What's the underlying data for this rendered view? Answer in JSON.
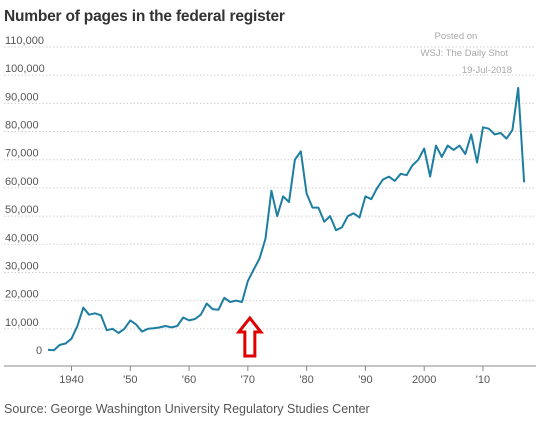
{
  "chart_data": {
    "type": "line",
    "title": "Number of pages in the federal register",
    "source": "Source: George Washington University Regulatory Studies Center",
    "posted": [
      "Posted on",
      "WSJ: The Daily Shot",
      "19-Jul-2018"
    ],
    "xlabel": "",
    "ylabel": "",
    "xlim": [
      1936,
      2018
    ],
    "ylim": [
      0,
      110000
    ],
    "grid": true,
    "y_ticks": [
      0,
      10000,
      20000,
      30000,
      40000,
      50000,
      60000,
      70000,
      80000,
      90000,
      100000,
      110000
    ],
    "y_tick_labels": [
      "0",
      "10,000",
      "20,000",
      "30,000",
      "40,000",
      "50,000",
      "60,000",
      "70,000",
      "80,000",
      "90,000",
      "100,000",
      "110,000"
    ],
    "x_ticks": [
      1940,
      1950,
      1960,
      1970,
      1980,
      1990,
      2000,
      2010
    ],
    "x_tick_labels": [
      "1940",
      "'50",
      "'60",
      "'70",
      "'80",
      "'90",
      "2000",
      "'10"
    ],
    "line_color": "#1e7ea1",
    "annotation": {
      "type": "arrow",
      "direction": "up",
      "x": 1970,
      "color": "#e00000"
    },
    "series": [
      {
        "name": "",
        "x": [
          1936,
          1937,
          1938,
          1939,
          1940,
          1941,
          1942,
          1943,
          1944,
          1945,
          1946,
          1947,
          1948,
          1949,
          1950,
          1951,
          1952,
          1953,
          1954,
          1955,
          1956,
          1957,
          1958,
          1959,
          1960,
          1961,
          1962,
          1963,
          1964,
          1965,
          1966,
          1967,
          1968,
          1969,
          1970,
          1971,
          1972,
          1973,
          1974,
          1975,
          1976,
          1977,
          1978,
          1979,
          1980,
          1981,
          1982,
          1983,
          1984,
          1985,
          1986,
          1987,
          1988,
          1989,
          1990,
          1991,
          1992,
          1993,
          1994,
          1995,
          1996,
          1997,
          1998,
          1999,
          2000,
          2001,
          2002,
          2003,
          2004,
          2005,
          2006,
          2007,
          2008,
          2009,
          2010,
          2011,
          2012,
          2013,
          2014,
          2015,
          2016,
          2017
        ],
        "y": [
          2600,
          2400,
          4300,
          4800,
          6500,
          11000,
          17500,
          15000,
          15500,
          14800,
          9500,
          10000,
          8500,
          10000,
          13000,
          11500,
          9000,
          10000,
          10200,
          10500,
          11000,
          10500,
          11000,
          14000,
          13000,
          13500,
          15000,
          19000,
          17000,
          16800,
          21000,
          19500,
          20000,
          19500,
          27000,
          31000,
          35000,
          42000,
          59000,
          50000,
          57000,
          55000,
          70000,
          73000,
          58000,
          53000,
          53000,
          48000,
          50000,
          45000,
          46000,
          50000,
          51000,
          49500,
          57000,
          56000,
          60000,
          63000,
          64000,
          62500,
          65000,
          64500,
          68000,
          70000,
          74000,
          64000,
          75000,
          71000,
          75000,
          73500,
          75000,
          72000,
          79000,
          69000,
          81500,
          81000,
          79000,
          79500,
          77500,
          80500,
          95500,
          62000
        ]
      }
    ]
  }
}
